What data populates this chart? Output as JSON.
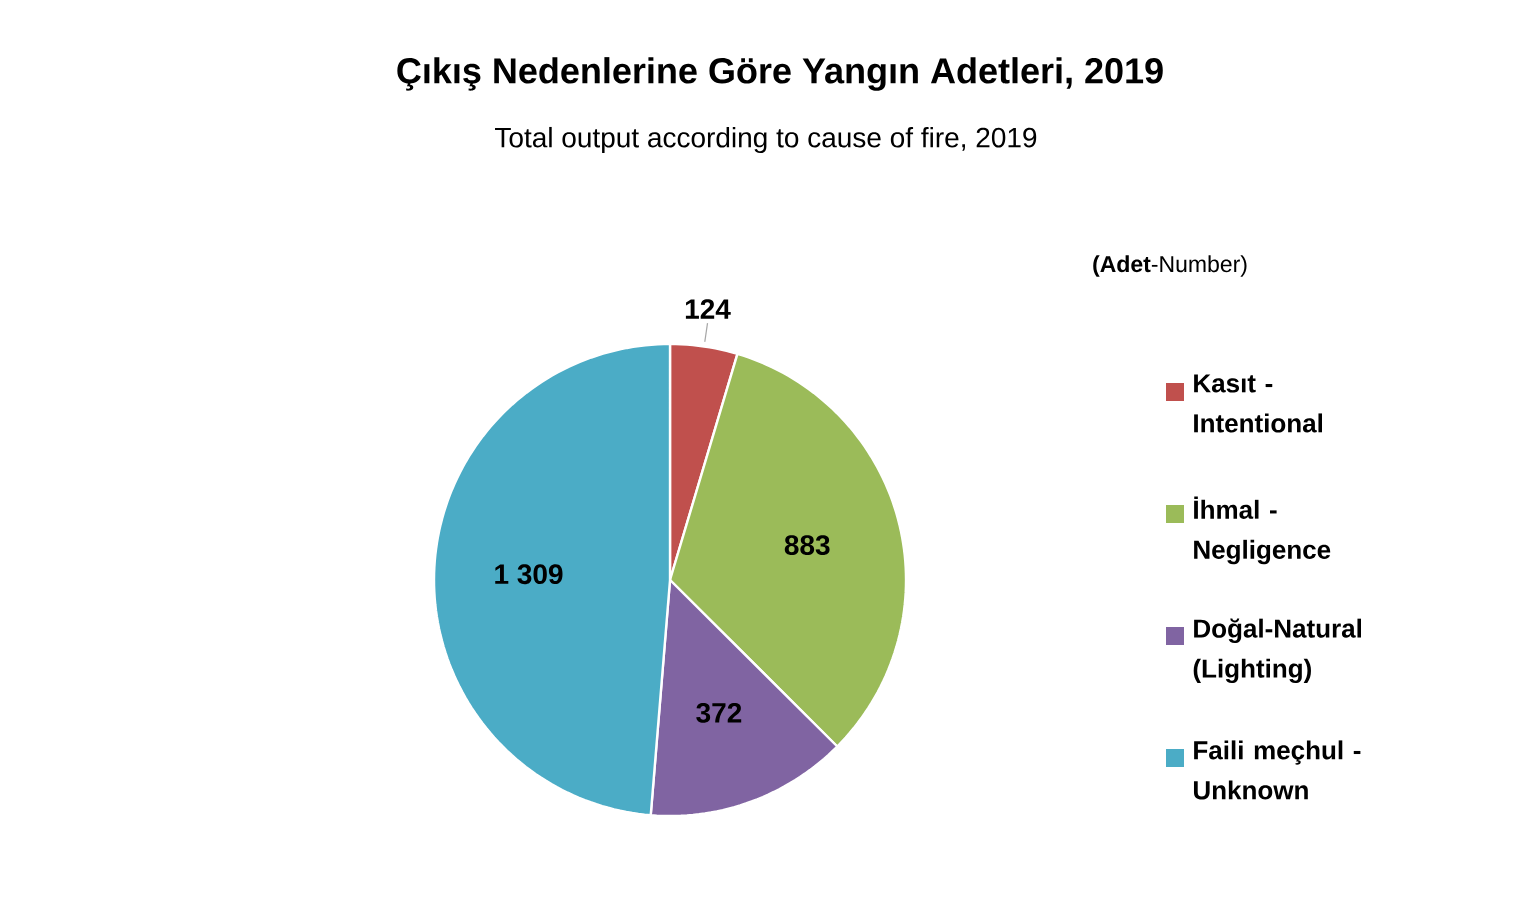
{
  "chart_data": {
    "type": "pie",
    "title": "Çıkış Nedenlerine Göre Yangın Adetleri, 2019",
    "subtitle": "Total output according to cause of fire, 2019",
    "annotations": [
      "**(Adet**-Number)"
    ],
    "categories": [
      "Kasıt - Intentional",
      "İhmal - Negligence",
      "Doğal-Natural (Lighting)",
      "Faili meçhul - Unknown"
    ],
    "values": [
      124,
      883,
      372,
      1309
    ],
    "colors": [
      "#c0504d",
      "#9bbb59",
      "#8064a2",
      "#4bacc6"
    ],
    "value_labels": [
      "124",
      "883",
      "372",
      "1 309"
    ],
    "legend": "right"
  }
}
